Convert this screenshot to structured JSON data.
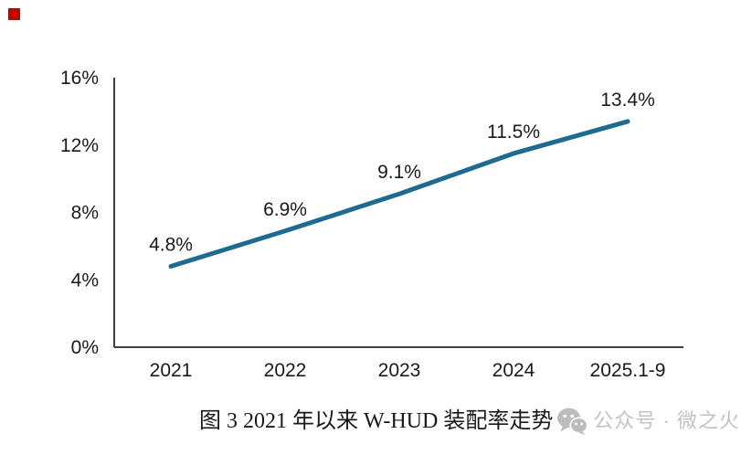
{
  "marker": {
    "color": "#c00000"
  },
  "chart_data": {
    "type": "line",
    "title": "",
    "xlabel": "",
    "ylabel": "",
    "categories": [
      "2021",
      "2022",
      "2023",
      "2024",
      "2025.1-9"
    ],
    "values": [
      4.8,
      6.9,
      9.1,
      11.5,
      13.4
    ],
    "data_labels": [
      "4.8%",
      "6.9%",
      "9.1%",
      "11.5%",
      "13.4%"
    ],
    "y_ticks": [
      0,
      4,
      8,
      12,
      16
    ],
    "y_tick_labels": [
      "0%",
      "4%",
      "8%",
      "12%",
      "16%"
    ],
    "ylim": [
      0,
      16
    ],
    "grid": false,
    "legend_position": "none",
    "line_color": "#1f6b8f",
    "axis_color": "#3f3f3f",
    "label_color": "#1a1a1a"
  },
  "caption": {
    "text": "图 3 2021 年以来 W-HUD 装配率走势"
  },
  "watermark": {
    "logo": "wechat-icon",
    "text": "公众号 · 微之火",
    "color": "#c3c3c3",
    "logo_color": "#bcbcbc"
  }
}
